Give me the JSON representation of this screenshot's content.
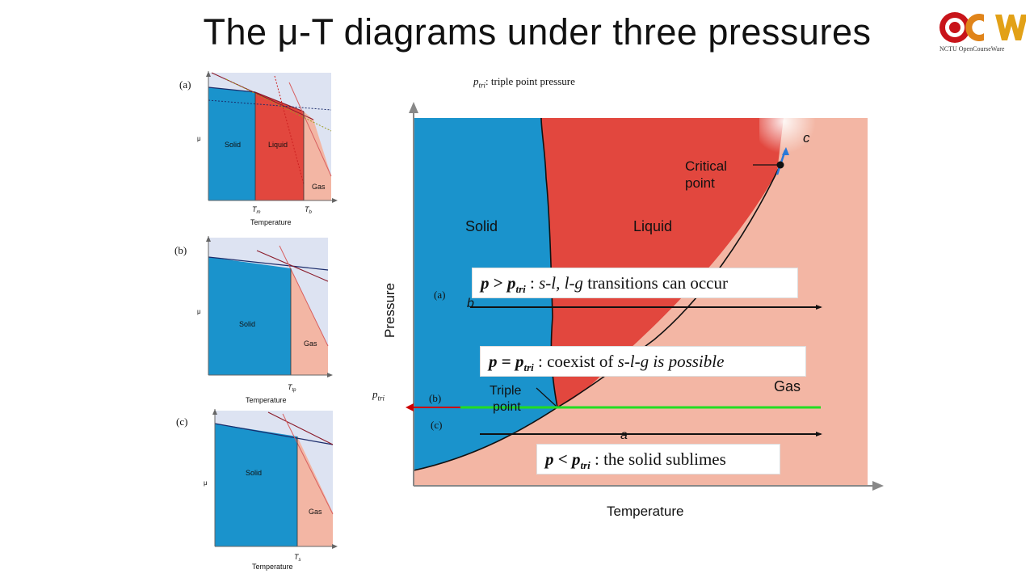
{
  "title": "The μ-T diagrams under three pressures",
  "logo": {
    "text": "OCW",
    "caption": "NCTU OpenCourseWare"
  },
  "note": {
    "symbol": "p",
    "subscript": "tri",
    "text": ": triple point pressure"
  },
  "small_diagrams": [
    {
      "label": "(a)",
      "ylabel": "μ",
      "xlabel": "Temperature",
      "regions": [
        "Solid",
        "Liquid",
        "Gas"
      ],
      "ticks": [
        {
          "t": "T",
          "s": "m"
        },
        {
          "t": "T",
          "s": "b"
        }
      ]
    },
    {
      "label": "(b)",
      "ylabel": "μ",
      "xlabel": "Temperature",
      "regions": [
        "Solid",
        "Gas"
      ],
      "ticks": [
        {
          "t": "T",
          "s": "tp"
        }
      ]
    },
    {
      "label": "(c)",
      "ylabel": "μ",
      "xlabel": "Temperature",
      "regions": [
        "Solid",
        "Gas"
      ],
      "ticks": [
        {
          "t": "T",
          "s": "s"
        }
      ]
    }
  ],
  "phase_diagram": {
    "ylabel": "Pressure",
    "xlabel": "Temperature",
    "regions": {
      "solid": "Solid",
      "liquid": "Liquid",
      "gas": "Gas"
    },
    "critical_point": [
      "Critical",
      "point"
    ],
    "triple_point": [
      "Triple",
      "point"
    ],
    "c_label": "c",
    "b_label": "b",
    "a_label": "a",
    "line_labels": [
      "(a)",
      "(b)",
      "(c)"
    ],
    "ptri_label": {
      "symbol": "p",
      "subscript": "tri"
    },
    "boxes": {
      "above": {
        "p": "p",
        "op": " > ",
        "ptri": "p",
        "sub": "tri",
        "rest1": " : ",
        "sl": "s-l, l-g",
        "rest2": " transitions can occur"
      },
      "equal": {
        "p": "p",
        "op": " = ",
        "ptri": "p",
        "sub": "tri",
        "rest1": " : coexist of ",
        "slg": "s-l-g",
        "rest2": " is possible"
      },
      "below": {
        "p": "p",
        "op": " < ",
        "ptri": "p",
        "sub": "tri",
        "rest1": " : the solid sublimes"
      }
    }
  },
  "colors": {
    "solid": "#1a93cc",
    "liquid": "#e2473e",
    "gas": "#f3b6a4",
    "bg": "#dde3f2",
    "green": "#22dd22",
    "red_arrow": "#cc0000"
  }
}
